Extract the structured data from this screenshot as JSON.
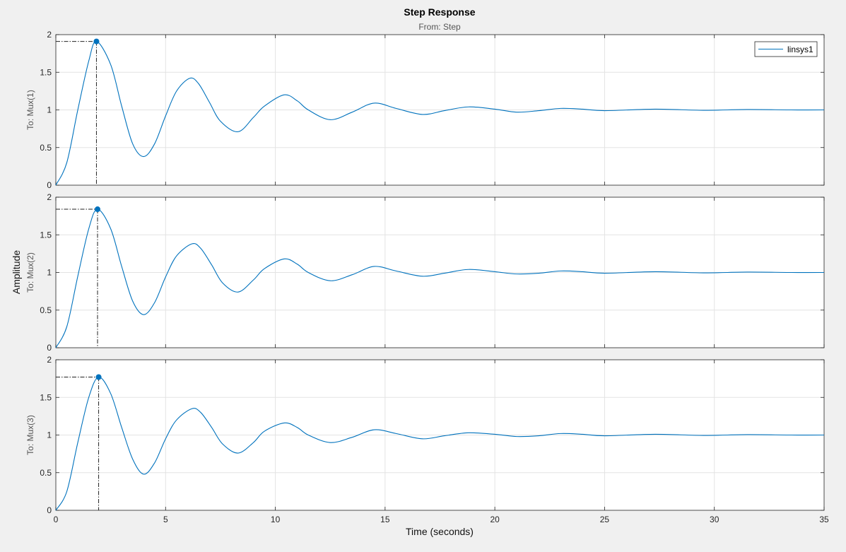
{
  "chart_data": {
    "type": "line",
    "title": "Step Response",
    "subtitle": "From: Step",
    "xlabel": "Time (seconds)",
    "ylabel": "Amplitude",
    "xlim": [
      0,
      35
    ],
    "x_ticks": [
      "0",
      "5",
      "10",
      "15",
      "20",
      "25",
      "30",
      "35"
    ],
    "grid": true,
    "legend": {
      "entries": [
        "linsys1"
      ],
      "placement": "top-right"
    },
    "series_color": "#0072bd",
    "peak_marker_color": "#0072bd",
    "panels": [
      {
        "name": "To: Mux(1)",
        "ylim": [
          0,
          2
        ],
        "y_ticks": [
          "0",
          "0.5",
          "1",
          "1.5",
          "2"
        ],
        "final_value": 1,
        "peak": {
          "x": 1.85,
          "y": 1.91
        },
        "series": [
          {
            "name": "linsys1",
            "x": [
              0,
              0.5,
              1,
              1.5,
              1.85,
              2.5,
              3,
              3.5,
              4,
              4.5,
              5,
              5.5,
              6.1,
              6.5,
              7,
              7.5,
              8.3,
              9,
              9.5,
              10.4,
              11,
              11.5,
              12.5,
              13.5,
              14.5,
              15.5,
              16.7,
              17.7,
              18.8,
              20,
              21,
              22,
              23,
              24,
              25,
              27.3,
              29.5,
              31.5,
              33.5,
              35
            ],
            "y": [
              0,
              0.3,
              1.0,
              1.65,
              1.91,
              1.6,
              1.05,
              0.55,
              0.38,
              0.55,
              0.92,
              1.25,
              1.42,
              1.35,
              1.1,
              0.85,
              0.71,
              0.9,
              1.05,
              1.2,
              1.12,
              1.0,
              0.87,
              0.97,
              1.09,
              1.02,
              0.94,
              0.99,
              1.04,
              1.01,
              0.97,
              0.99,
              1.02,
              1.01,
              0.99,
              1.01,
              0.995,
              1.005,
              1.0,
              1.0
            ]
          }
        ]
      },
      {
        "name": "To: Mux(2)",
        "ylim": [
          0,
          2
        ],
        "y_ticks": [
          "0",
          "0.5",
          "1",
          "1.5",
          "2"
        ],
        "final_value": 1,
        "peak": {
          "x": 1.9,
          "y": 1.84
        },
        "series": [
          {
            "name": "linsys1",
            "x": [
              0,
              0.5,
              1,
              1.5,
              1.9,
              2.5,
              3,
              3.5,
              4,
              4.5,
              5,
              5.5,
              6.2,
              6.6,
              7.1,
              7.6,
              8.3,
              9,
              9.5,
              10.4,
              11,
              11.5,
              12.5,
              13.5,
              14.5,
              15.5,
              16.7,
              17.7,
              18.8,
              20,
              21,
              22,
              23,
              24,
              25,
              27.3,
              29.5,
              31.5,
              33.5,
              35
            ],
            "y": [
              0,
              0.28,
              0.95,
              1.58,
              1.84,
              1.58,
              1.08,
              0.62,
              0.44,
              0.6,
              0.94,
              1.22,
              1.38,
              1.32,
              1.1,
              0.86,
              0.74,
              0.9,
              1.05,
              1.18,
              1.11,
              1.0,
              0.89,
              0.97,
              1.08,
              1.02,
              0.95,
              0.99,
              1.04,
              1.01,
              0.98,
              0.99,
              1.02,
              1.01,
              0.99,
              1.01,
              0.995,
              1.005,
              1.0,
              1.0
            ]
          }
        ]
      },
      {
        "name": "To: Mux(3)",
        "ylim": [
          0,
          2
        ],
        "y_ticks": [
          "0",
          "0.5",
          "1",
          "1.5",
          "2"
        ],
        "final_value": 1,
        "peak": {
          "x": 1.95,
          "y": 1.77
        },
        "series": [
          {
            "name": "linsys1",
            "x": [
              0,
              0.5,
              1,
              1.5,
              1.95,
              2.5,
              3,
              3.5,
              4,
              4.5,
              5,
              5.5,
              6.2,
              6.6,
              7.1,
              7.6,
              8.3,
              9,
              9.5,
              10.4,
              11,
              11.5,
              12.5,
              13.5,
              14.5,
              15.5,
              16.7,
              17.7,
              18.8,
              20,
              21,
              22,
              23,
              24,
              25,
              27.3,
              29.5,
              31.5,
              33.5,
              35
            ],
            "y": [
              0,
              0.25,
              0.9,
              1.5,
              1.77,
              1.55,
              1.1,
              0.68,
              0.48,
              0.63,
              0.95,
              1.2,
              1.35,
              1.3,
              1.1,
              0.88,
              0.76,
              0.9,
              1.05,
              1.16,
              1.1,
              1.0,
              0.9,
              0.97,
              1.07,
              1.02,
              0.95,
              0.99,
              1.03,
              1.01,
              0.98,
              0.99,
              1.02,
              1.01,
              0.99,
              1.01,
              0.995,
              1.005,
              1.0,
              1.0
            ]
          }
        ]
      }
    ]
  }
}
